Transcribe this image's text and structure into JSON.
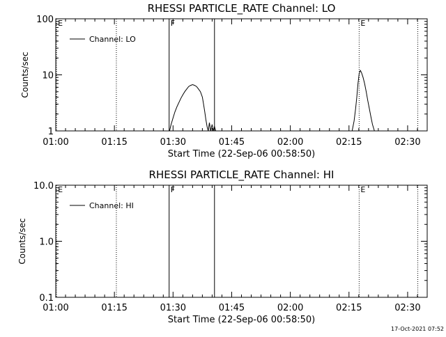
{
  "chart_data": [
    {
      "type": "line",
      "title": "RHESSI PARTICLE_RATE Channel: LO",
      "xlabel": "Start Time (22-Sep-06 00:58:50)",
      "ylabel": "Counts/sec",
      "yscale": "log",
      "ylim": [
        1,
        100
      ],
      "yticks": [
        {
          "v": 1,
          "label": "1"
        },
        {
          "v": 10,
          "label": "10"
        },
        {
          "v": 100,
          "label": "100"
        }
      ],
      "xlim_minutes": [
        60,
        155
      ],
      "xticks": [
        {
          "v": 60,
          "label": "01:00"
        },
        {
          "v": 75,
          "label": "01:15"
        },
        {
          "v": 90,
          "label": "01:30"
        },
        {
          "v": 105,
          "label": "01:45"
        },
        {
          "v": 120,
          "label": "02:00"
        },
        {
          "v": 135,
          "label": "02:15"
        },
        {
          "v": 150,
          "label": "02:30"
        }
      ],
      "legend": {
        "label": "Channel: LO",
        "position": "top-left"
      },
      "grid": false,
      "series": [
        {
          "name": "Channel: LO",
          "x": [
            89.1,
            89.5,
            90.0,
            90.5,
            91.0,
            91.5,
            92.0,
            92.5,
            93.0,
            93.5,
            94.0,
            94.5,
            95.0,
            95.5,
            96.0,
            96.5,
            97.0,
            97.5,
            97.8,
            98.1,
            98.4,
            98.7,
            99.0,
            99.3,
            99.6,
            100.0,
            100.3,
            100.6,
            100.9
          ],
          "y": [
            1.0,
            1.3,
            1.7,
            2.2,
            2.7,
            3.2,
            3.8,
            4.4,
            5.0,
            5.6,
            6.2,
            6.5,
            6.7,
            6.5,
            6.2,
            5.6,
            5.0,
            4.0,
            3.0,
            2.2,
            1.6,
            1.2,
            1.0,
            1.4,
            1.0,
            1.3,
            1.0,
            1.2,
            1.0
          ]
        },
        {
          "name": "Channel: LO",
          "x": [
            135.8,
            136.3,
            136.7,
            137.0,
            137.3,
            137.6,
            137.9,
            138.2,
            138.6,
            139.0,
            139.4,
            139.8,
            140.2,
            140.6,
            141.0,
            141.5
          ],
          "y": [
            1.0,
            1.5,
            2.5,
            4.0,
            7.0,
            10.5,
            12.0,
            11.0,
            9.0,
            7.0,
            5.0,
            3.5,
            2.5,
            1.8,
            1.3,
            1.0
          ]
        }
      ],
      "markers": [
        {
          "label": "E",
          "x": 60.2,
          "style": "dotted"
        },
        {
          "x": 75.5,
          "style": "dotted"
        },
        {
          "label": "F",
          "x": 89.0,
          "style": "solid"
        },
        {
          "x": 100.6,
          "style": "solid"
        },
        {
          "label": "E",
          "x": 137.6,
          "style": "dotted"
        },
        {
          "x": 152.6,
          "style": "dotted"
        }
      ]
    },
    {
      "type": "line",
      "title": "RHESSI PARTICLE_RATE Channel: HI",
      "xlabel": "Start Time (22-Sep-06 00:58:50)",
      "ylabel": "Counts/sec",
      "yscale": "log",
      "ylim": [
        0.1,
        10
      ],
      "yticks": [
        {
          "v": 0.1,
          "label": "0.1"
        },
        {
          "v": 1,
          "label": "1.0"
        },
        {
          "v": 10,
          "label": "10.0"
        }
      ],
      "xlim_minutes": [
        60,
        155
      ],
      "xticks": [
        {
          "v": 60,
          "label": "01:00"
        },
        {
          "v": 75,
          "label": "01:15"
        },
        {
          "v": 90,
          "label": "01:30"
        },
        {
          "v": 105,
          "label": "01:45"
        },
        {
          "v": 120,
          "label": "02:00"
        },
        {
          "v": 135,
          "label": "02:15"
        },
        {
          "v": 150,
          "label": "02:30"
        }
      ],
      "legend": {
        "label": "Channel: HI",
        "position": "top-left"
      },
      "grid": false,
      "series": [
        {
          "name": "Channel: HI",
          "x": [],
          "y": []
        }
      ],
      "markers": [
        {
          "label": "E",
          "x": 60.2,
          "style": "dotted"
        },
        {
          "x": 75.5,
          "style": "dotted"
        },
        {
          "label": "F",
          "x": 89.0,
          "style": "solid"
        },
        {
          "x": 100.6,
          "style": "solid"
        },
        {
          "label": "E",
          "x": 137.6,
          "style": "dotted"
        },
        {
          "x": 152.6,
          "style": "dotted"
        }
      ]
    }
  ],
  "footer": {
    "timestamp": "17-Oct-2021 07:52"
  }
}
